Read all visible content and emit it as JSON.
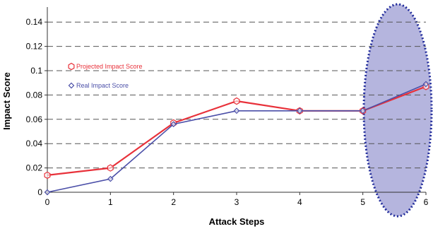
{
  "chart_data": {
    "type": "line",
    "title": "",
    "xlabel": "Attack Steps",
    "ylabel": "Impact Score",
    "xlim": [
      0,
      6
    ],
    "ylim": [
      0,
      0.15
    ],
    "x_ticks": [
      "0",
      "1",
      "2",
      "3",
      "4",
      "5",
      "6"
    ],
    "y_ticks": [
      "0",
      "0.02",
      "0.04",
      "0.06",
      "0.08",
      "0.1",
      "0.12",
      "0.14"
    ],
    "grid": "horizontal dashed",
    "legend_position": "upper-left",
    "series": [
      {
        "name": "Projected Impact Score",
        "color": "#e8313a",
        "marker": "hexagon-open",
        "x": [
          0,
          1,
          2,
          3,
          4,
          5,
          6
        ],
        "values": [
          0.014,
          0.02,
          0.057,
          0.075,
          0.067,
          0.067,
          0.087
        ]
      },
      {
        "name": "Real Impact Score",
        "color": "#4b4fa8",
        "marker": "diamond-open",
        "x": [
          0,
          1,
          2,
          3,
          4,
          5,
          6
        ],
        "values": [
          0.0,
          0.011,
          0.056,
          0.067,
          0.067,
          0.067,
          0.089
        ]
      }
    ],
    "annotation": {
      "shape": "ellipse",
      "fill": "#a8a8d8",
      "stroke": "#1f2a9a",
      "highlights_x": [
        5,
        6
      ]
    }
  }
}
